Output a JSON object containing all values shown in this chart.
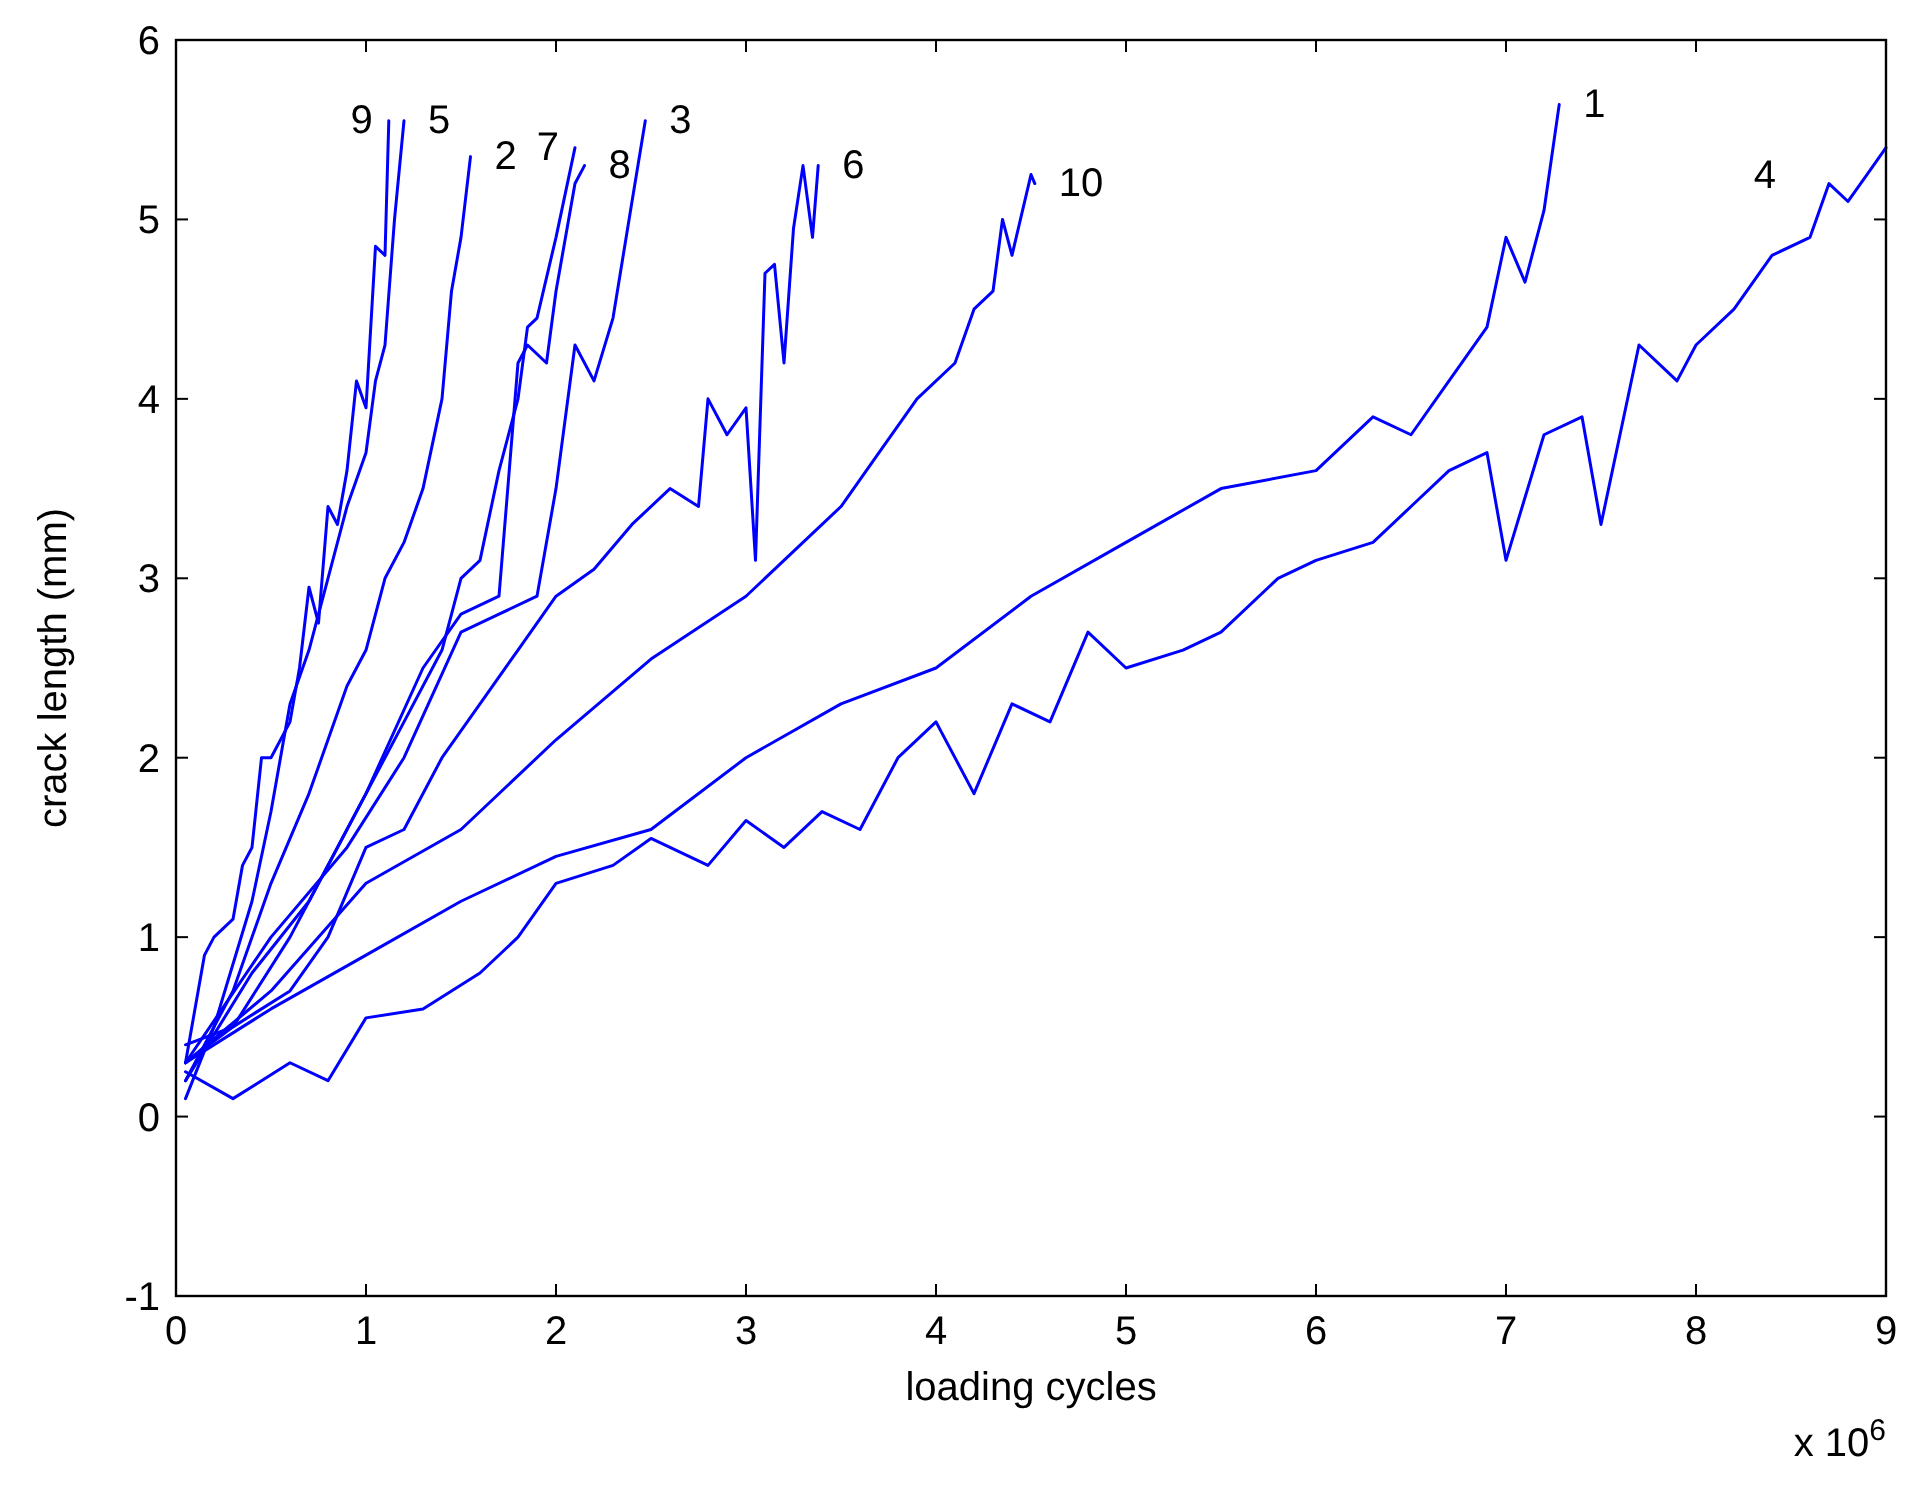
{
  "chart_data": {
    "type": "line",
    "xlabel": "loading cycles",
    "ylabel": "crack length (mm)",
    "annotations": [
      "x 10$^{6}$"
    ],
    "xlim": [
      0,
      9
    ],
    "xticks": [
      0,
      1,
      2,
      3,
      4,
      5,
      6,
      7,
      8,
      9
    ],
    "ylim": [
      -1,
      6
    ],
    "yticks": [
      -1,
      0,
      1,
      2,
      3,
      4,
      5,
      6
    ],
    "grid": false,
    "marker": "none",
    "line_style": "solid",
    "series": [
      {
        "name": "1",
        "color": "#0000ff",
        "x": [
          0.05,
          0.5,
          1.0,
          1.5,
          2.0,
          2.5,
          3.0,
          3.5,
          4.0,
          4.5,
          5.0,
          5.5,
          6.0,
          6.3,
          6.5,
          6.7,
          6.9,
          7.0,
          7.1,
          7.2,
          7.28
        ],
        "values": [
          0.3,
          0.6,
          0.9,
          1.2,
          1.45,
          1.6,
          2.0,
          2.3,
          2.5,
          2.9,
          3.2,
          3.5,
          3.6,
          3.9,
          3.8,
          4.1,
          4.4,
          4.9,
          4.65,
          5.05,
          5.64
        ]
      },
      {
        "name": "2",
        "color": "#0000ff",
        "x": [
          0.05,
          0.3,
          0.5,
          0.7,
          0.9,
          1.0,
          1.1,
          1.2,
          1.3,
          1.4,
          1.45,
          1.5,
          1.55
        ],
        "values": [
          0.2,
          0.7,
          1.3,
          1.8,
          2.4,
          2.6,
          3.0,
          3.2,
          3.5,
          4.0,
          4.6,
          4.9,
          5.35
        ]
      },
      {
        "name": "3",
        "color": "#0000ff",
        "x": [
          0.05,
          0.5,
          0.9,
          1.2,
          1.5,
          1.7,
          1.9,
          2.0,
          2.1,
          2.2,
          2.3,
          2.4,
          2.47
        ],
        "values": [
          0.3,
          1.0,
          1.5,
          2.0,
          2.7,
          2.8,
          2.9,
          3.5,
          4.3,
          4.1,
          4.45,
          5.1,
          5.55
        ]
      },
      {
        "name": "4",
        "color": "#0000ff",
        "x": [
          0.05,
          0.3,
          0.6,
          0.8,
          1.0,
          1.3,
          1.6,
          1.8,
          2.0,
          2.3,
          2.5,
          2.8,
          3.0,
          3.2,
          3.4,
          3.6,
          3.8,
          4.0,
          4.2,
          4.4,
          4.6,
          4.8,
          5.0,
          5.3,
          5.5,
          5.8,
          6.0,
          6.3,
          6.5,
          6.7,
          6.9,
          7.0,
          7.2,
          7.4,
          7.5,
          7.7,
          7.9,
          8.0,
          8.2,
          8.4,
          8.6,
          8.7,
          8.8,
          8.9,
          9.0
        ],
        "values": [
          0.25,
          0.1,
          0.3,
          0.2,
          0.55,
          0.6,
          0.8,
          1.0,
          1.3,
          1.4,
          1.55,
          1.4,
          1.65,
          1.5,
          1.7,
          1.6,
          2.0,
          2.2,
          1.8,
          2.3,
          2.2,
          2.7,
          2.5,
          2.6,
          2.7,
          3.0,
          3.1,
          3.2,
          3.4,
          3.6,
          3.7,
          3.1,
          3.8,
          3.9,
          3.3,
          4.3,
          4.1,
          4.3,
          4.5,
          4.8,
          4.9,
          5.2,
          5.1,
          5.25,
          5.4
        ]
      },
      {
        "name": "5",
        "color": "#0000ff",
        "x": [
          0.05,
          0.2,
          0.4,
          0.5,
          0.6,
          0.7,
          0.8,
          0.9,
          1.0,
          1.05,
          1.1,
          1.15,
          1.2
        ],
        "values": [
          0.1,
          0.5,
          1.2,
          1.7,
          2.3,
          2.6,
          3.0,
          3.4,
          3.7,
          4.1,
          4.3,
          5.0,
          5.55
        ]
      },
      {
        "name": "6",
        "color": "#0000ff",
        "x": [
          0.05,
          0.3,
          0.6,
          0.8,
          1.0,
          1.2,
          1.4,
          1.6,
          1.8,
          2.0,
          2.2,
          2.4,
          2.6,
          2.75,
          2.8,
          2.9,
          3.0,
          3.05,
          3.1,
          3.15,
          3.2,
          3.25,
          3.3,
          3.35,
          3.38
        ],
        "values": [
          0.4,
          0.5,
          0.7,
          1.0,
          1.5,
          1.6,
          2.0,
          2.3,
          2.6,
          2.9,
          3.05,
          3.3,
          3.5,
          3.4,
          4.0,
          3.8,
          3.95,
          3.1,
          4.7,
          4.75,
          4.2,
          4.95,
          5.3,
          4.9,
          5.3
        ]
      },
      {
        "name": "7",
        "color": "#0000ff",
        "x": [
          0.05,
          0.3,
          0.6,
          0.9,
          1.2,
          1.4,
          1.5,
          1.6,
          1.7,
          1.8,
          1.85,
          1.9,
          2.0,
          2.1
        ],
        "values": [
          0.3,
          0.5,
          1.0,
          1.6,
          2.2,
          2.6,
          3.0,
          3.1,
          3.6,
          4.0,
          4.4,
          4.45,
          4.9,
          5.4
        ]
      },
      {
        "name": "8",
        "color": "#0000ff",
        "x": [
          0.05,
          0.4,
          0.7,
          1.0,
          1.3,
          1.5,
          1.7,
          1.8,
          1.85,
          1.95,
          2.0,
          2.1,
          2.15
        ],
        "values": [
          0.2,
          0.8,
          1.2,
          1.8,
          2.5,
          2.8,
          2.9,
          4.2,
          4.3,
          4.2,
          4.6,
          5.2,
          5.3
        ]
      },
      {
        "name": "9",
        "color": "#0000ff",
        "x": [
          0.05,
          0.15,
          0.2,
          0.3,
          0.35,
          0.4,
          0.45,
          0.5,
          0.6,
          0.65,
          0.7,
          0.75,
          0.8,
          0.85,
          0.9,
          0.95,
          1.0,
          1.05,
          1.1,
          1.12
        ],
        "values": [
          0.3,
          0.9,
          1.0,
          1.1,
          1.4,
          1.5,
          2.0,
          2.0,
          2.2,
          2.5,
          2.95,
          2.75,
          3.4,
          3.3,
          3.6,
          4.1,
          3.95,
          4.85,
          4.8,
          5.55
        ]
      },
      {
        "name": "10",
        "color": "#0000ff",
        "x": [
          0.05,
          0.5,
          1.0,
          1.5,
          2.0,
          2.5,
          3.0,
          3.5,
          3.7,
          3.9,
          4.1,
          4.2,
          4.3,
          4.35,
          4.4,
          4.5,
          4.52
        ],
        "values": [
          0.3,
          0.7,
          1.3,
          1.6,
          2.1,
          2.55,
          2.9,
          3.4,
          3.7,
          4.0,
          4.2,
          4.5,
          4.6,
          5.0,
          4.8,
          5.25,
          5.2
        ]
      }
    ]
  }
}
